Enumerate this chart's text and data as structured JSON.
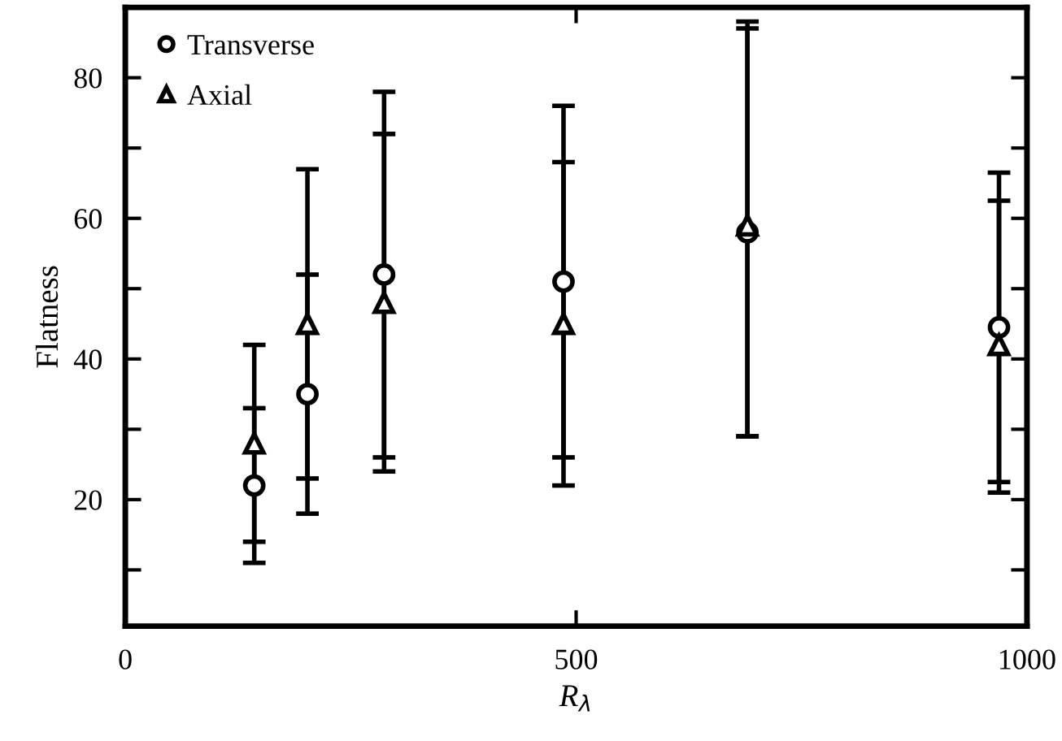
{
  "chart_data": {
    "type": "scatter",
    "xlabel": "R$_{λ}$",
    "ylabel": "Flatness",
    "x": [
      143,
      202,
      287,
      486,
      690,
      969
    ],
    "series": [
      {
        "name": "Transverse",
        "color": "#000000",
        "marker": "circle",
        "values": [
          22,
          35,
          52,
          51,
          58,
          44.5
        ],
        "errors": [
          [
            11,
            42
          ],
          [
            18,
            67
          ],
          [
            24,
            78
          ],
          [
            22,
            76
          ],
          [
            29,
            88
          ],
          [
            21,
            66.5
          ]
        ]
      },
      {
        "name": "Axial",
        "color": "#000000",
        "marker": "triangle",
        "values": [
          28,
          45,
          48,
          45,
          59,
          42
        ],
        "errors": [
          [
            14,
            33
          ],
          [
            23,
            52
          ],
          [
            26,
            72
          ],
          [
            26,
            68
          ],
          [
            29,
            87
          ],
          [
            22.5,
            62.5
          ]
        ]
      }
    ],
    "xlim": [
      0,
      1000
    ],
    "xticks": [
      0,
      500,
      1000
    ],
    "ylim": [
      2,
      90
    ],
    "yticks": [
      {
        "value": 10,
        "label": null
      },
      20,
      {
        "value": 30,
        "label": null
      },
      40,
      {
        "value": 50,
        "label": null
      },
      60,
      {
        "value": 70,
        "label": null
      },
      80,
      {
        "value": 90,
        "label": null
      }
    ],
    "grid": false,
    "legend": "top left"
  }
}
